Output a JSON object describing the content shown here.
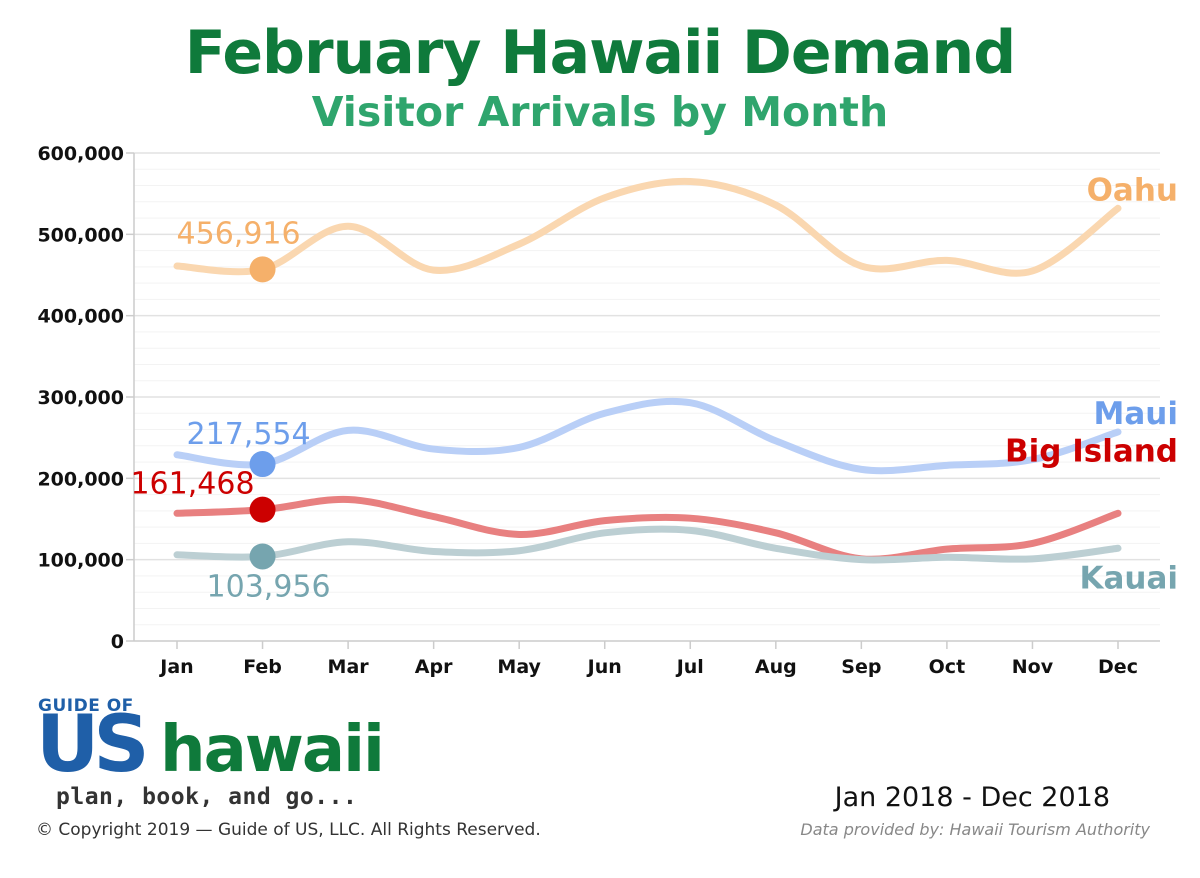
{
  "header": {
    "title": "February Hawaii Demand",
    "subtitle": "Visitor Arrivals by Month"
  },
  "chart_data": {
    "type": "line",
    "title": "February Hawaii Demand",
    "subtitle": "Visitor Arrivals by Month",
    "xlabel": "",
    "ylabel": "",
    "categories": [
      "Jan",
      "Feb",
      "Mar",
      "Apr",
      "May",
      "Jun",
      "Jul",
      "Aug",
      "Sep",
      "Oct",
      "Nov",
      "Dec"
    ],
    "ylim": [
      0,
      600000
    ],
    "yticks": [
      0,
      100000,
      200000,
      300000,
      400000,
      500000,
      600000
    ],
    "ytick_labels": [
      "0",
      "100,000",
      "200,000",
      "300,000",
      "400,000",
      "500,000",
      "600,000"
    ],
    "grid": true,
    "legend": "none (series labels at right end of lines)",
    "highlight_index": 1,
    "series": [
      {
        "name": "Oahu",
        "color": "#f5b06a",
        "line_color": "#fad7b0",
        "values": [
          461000,
          456916,
          510000,
          456000,
          488000,
          545000,
          565000,
          536000,
          461000,
          468000,
          455000,
          532000
        ],
        "highlight_label": "456,916"
      },
      {
        "name": "Maui",
        "color": "#6d9eeb",
        "line_color": "#b9cff7",
        "values": [
          229000,
          217554,
          259000,
          236000,
          238000,
          280000,
          293000,
          246000,
          211000,
          216000,
          223000,
          257000
        ],
        "highlight_label": "217,554"
      },
      {
        "name": "Big Island",
        "color": "#cc0000",
        "line_color": "#e88080",
        "values": [
          157000,
          161468,
          174000,
          153000,
          131000,
          148000,
          151000,
          133000,
          101000,
          113000,
          120000,
          157000
        ],
        "highlight_label": "161,468"
      },
      {
        "name": "Kauai",
        "color": "#76a5af",
        "line_color": "#bccfd3",
        "values": [
          106000,
          103956,
          122000,
          110000,
          111000,
          133000,
          136000,
          114000,
          100000,
          103000,
          101000,
          114000
        ],
        "highlight_label": "103,956"
      }
    ]
  },
  "logo": {
    "top_text": "GUIDE OF",
    "us_text": "US",
    "hawaii_text": "hawaii",
    "tagline": "plan, book, and go..."
  },
  "footer": {
    "copyright": "© Copyright 2019 — Guide of US, LLC. All Rights Reserved.",
    "date_range": "Jan 2018 - Dec 2018",
    "source": "Data provided by: Hawaii Tourism Authority"
  }
}
